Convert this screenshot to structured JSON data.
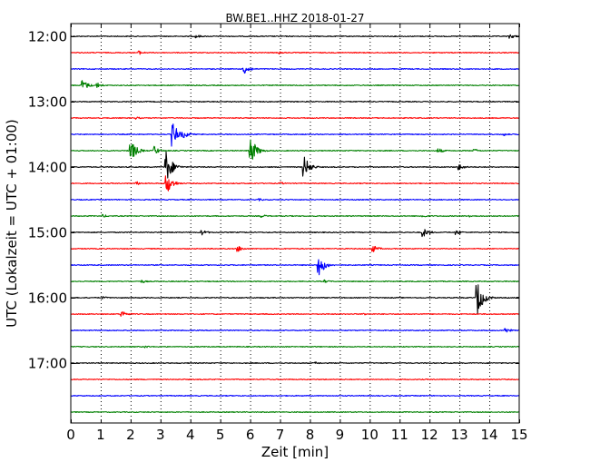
{
  "chart_data": {
    "type": "line",
    "title": "BW.BE1..HHZ 2018-01-27",
    "xlabel": "Zeit  [min]",
    "ylabel": "UTC (Lokalzeit = UTC + 01:00)",
    "xlim": [
      0,
      15
    ],
    "xticks": [
      "0",
      "1",
      "2",
      "3",
      "4",
      "5",
      "6",
      "7",
      "8",
      "9",
      "10",
      "11",
      "12",
      "13",
      "14",
      "15"
    ],
    "yticks": [
      "12:00",
      "13:00",
      "14:00",
      "15:00",
      "16:00",
      "17:00"
    ],
    "grid_x": true,
    "interval_minutes": 15,
    "row_colors": [
      "#000000",
      "#ff0000",
      "#0000ff",
      "#008000"
    ],
    "series": [
      {
        "start": "12:00",
        "events": [
          {
            "t": 4.2,
            "amp": 0.15
          },
          {
            "t": 14.7,
            "amp": 0.2
          }
        ]
      },
      {
        "start": "12:15",
        "events": [
          {
            "t": 2.3,
            "amp": 0.15
          },
          {
            "t": 7.0,
            "amp": 0.12
          }
        ]
      },
      {
        "start": "12:30",
        "events": [
          {
            "t": 5.8,
            "amp": 0.45
          }
        ]
      },
      {
        "start": "12:45",
        "events": [
          {
            "t": 0.4,
            "amp": 0.45
          },
          {
            "t": 0.9,
            "amp": 0.2
          }
        ]
      },
      {
        "start": "13:00",
        "events": []
      },
      {
        "start": "13:15",
        "events": [
          {
            "t": 2.2,
            "amp": 0.1
          }
        ]
      },
      {
        "start": "13:30",
        "events": [
          {
            "t": 3.4,
            "amp": 1.0
          },
          {
            "t": 3.8,
            "amp": 0.3
          },
          {
            "t": 14.5,
            "amp": 0.12
          }
        ]
      },
      {
        "start": "13:45",
        "events": [
          {
            "t": 2.0,
            "amp": 0.9
          },
          {
            "t": 2.8,
            "amp": 0.35
          },
          {
            "t": 6.0,
            "amp": 1.2
          },
          {
            "t": 12.3,
            "amp": 0.2
          },
          {
            "t": 13.5,
            "amp": 0.15
          }
        ]
      },
      {
        "start": "14:00",
        "events": [
          {
            "t": 3.2,
            "amp": 1.3
          },
          {
            "t": 7.8,
            "amp": 0.9
          },
          {
            "t": 13.0,
            "amp": 0.25
          }
        ]
      },
      {
        "start": "14:15",
        "events": [
          {
            "t": 3.2,
            "amp": 0.9
          },
          {
            "t": 2.2,
            "amp": 0.15
          },
          {
            "t": 7.0,
            "amp": 0.12
          }
        ]
      },
      {
        "start": "14:30",
        "events": [
          {
            "t": 6.3,
            "amp": 0.1
          }
        ]
      },
      {
        "start": "14:45",
        "events": [
          {
            "t": 1.1,
            "amp": 0.12
          },
          {
            "t": 6.4,
            "amp": 0.12
          },
          {
            "t": 11.8,
            "amp": 0.12
          },
          {
            "t": 13.3,
            "amp": 0.12
          }
        ]
      },
      {
        "start": "15:00",
        "events": [
          {
            "t": 4.4,
            "amp": 0.2
          },
          {
            "t": 11.8,
            "amp": 0.35
          },
          {
            "t": 12.9,
            "amp": 0.2
          }
        ]
      },
      {
        "start": "15:15",
        "events": [
          {
            "t": 5.6,
            "amp": 0.25
          },
          {
            "t": 10.1,
            "amp": 0.3
          }
        ]
      },
      {
        "start": "15:30",
        "events": [
          {
            "t": 8.3,
            "amp": 0.9
          }
        ]
      },
      {
        "start": "15:45",
        "events": [
          {
            "t": 2.4,
            "amp": 0.12
          },
          {
            "t": 8.5,
            "amp": 0.12
          }
        ]
      },
      {
        "start": "16:00",
        "events": [
          {
            "t": 13.6,
            "amp": 1.4
          },
          {
            "t": 1.1,
            "amp": 0.1
          }
        ]
      },
      {
        "start": "16:15",
        "events": [
          {
            "t": 1.7,
            "amp": 0.3
          },
          {
            "t": 9.8,
            "amp": 0.1
          }
        ]
      },
      {
        "start": "16:30",
        "events": [
          {
            "t": 14.5,
            "amp": 0.25
          }
        ]
      },
      {
        "start": "16:45",
        "events": [
          {
            "t": 2.5,
            "amp": 0.1
          }
        ]
      },
      {
        "start": "17:00",
        "events": [
          {
            "t": 8.2,
            "amp": 0.1
          }
        ]
      },
      {
        "start": "17:15",
        "events": []
      },
      {
        "start": "17:30",
        "events": []
      },
      {
        "start": "17:45",
        "events": []
      }
    ]
  }
}
